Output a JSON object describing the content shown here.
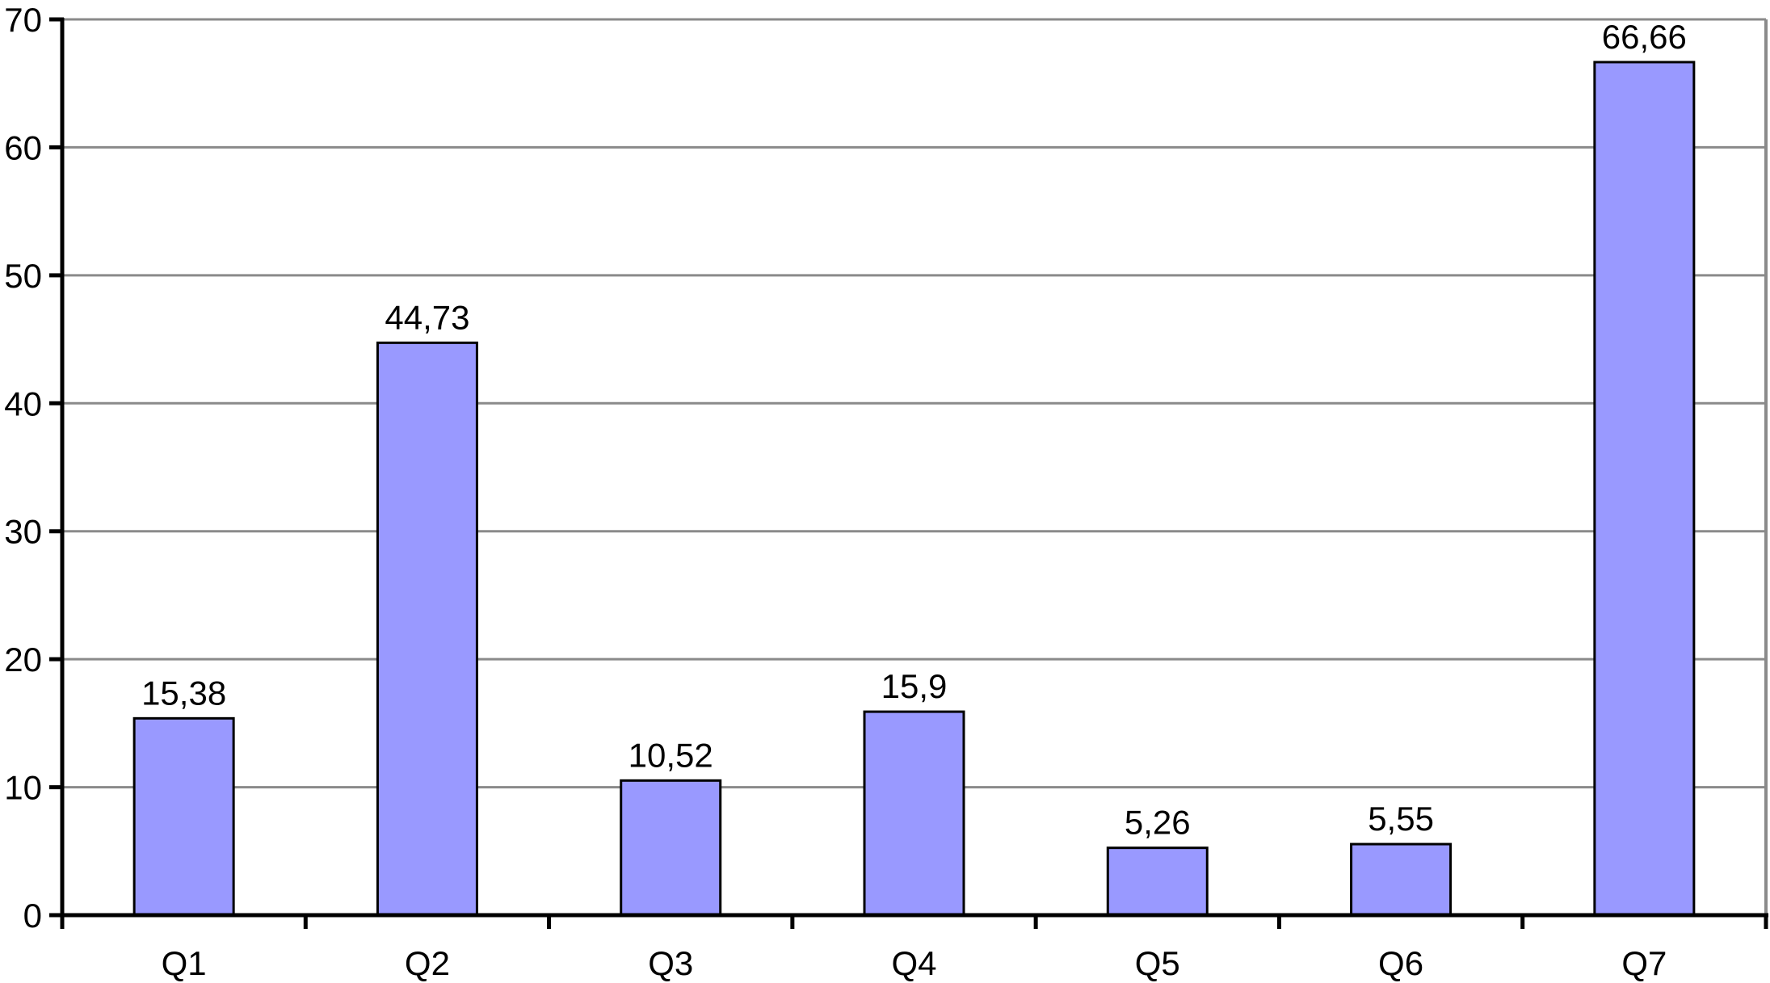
{
  "chart_data": {
    "type": "bar",
    "title": "",
    "xlabel": "",
    "ylabel": "",
    "categories": [
      "Q1",
      "Q2",
      "Q3",
      "Q4",
      "Q5",
      "Q6",
      "Q7"
    ],
    "values": [
      15.38,
      44.73,
      10.52,
      15.9,
      5.26,
      5.55,
      66.66
    ],
    "value_labels": [
      "15,38",
      "44,73",
      "10,52",
      "15,9",
      "5,26",
      "5,55",
      "66,66"
    ],
    "ylim": [
      0,
      70
    ],
    "ytick_step": 10,
    "ytick_labels": [
      "0",
      "10",
      "20",
      "30",
      "40",
      "50",
      "60",
      "70"
    ],
    "grid": "horizontal-only",
    "legend_position": "none",
    "colors": {
      "bar_fill": "#9999FF",
      "bar_border": "#000000",
      "grid_line": "#8A8A8A",
      "plot_right_border": "#8A8A8A",
      "axis_line": "#000000",
      "label_text": "#000000",
      "background": "#FFFFFF"
    }
  }
}
